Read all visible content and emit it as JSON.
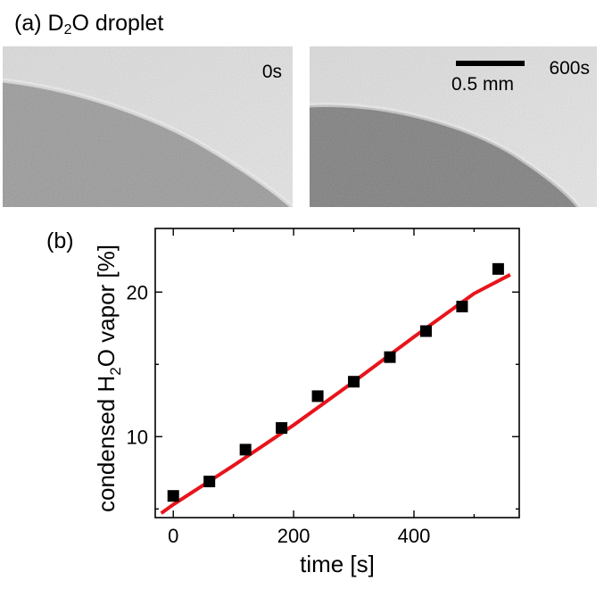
{
  "figure": {
    "panel_a": {
      "label_prefix": "(a) D",
      "label_sub": "2",
      "label_suffix": "O droplet",
      "images": [
        {
          "time_label": "0s"
        },
        {
          "time_label": "600s",
          "scale_bar_label": "0.5 mm"
        }
      ]
    },
    "panel_b": {
      "label": "(b)"
    }
  },
  "chart_data": {
    "type": "scatter",
    "xlabel": "time [s]",
    "ylabel": "condensed H2O vapor [%]",
    "ylabel_parts": [
      "condensed H",
      "2",
      "O vapor [%]"
    ],
    "xlim": [
      -30,
      575
    ],
    "ylim": [
      4.4,
      24.4
    ],
    "x_ticks": [
      0,
      200,
      400
    ],
    "y_ticks": [
      10,
      20
    ],
    "grid": false,
    "series": [
      {
        "kind": "points",
        "marker": "square",
        "color": "#000000",
        "x": [
          0,
          60,
          120,
          180,
          240,
          300,
          360,
          420,
          480,
          540
        ],
        "y": [
          5.9,
          6.9,
          9.1,
          10.6,
          12.8,
          13.8,
          15.5,
          17.3,
          19.0,
          21.6
        ]
      },
      {
        "kind": "fit-line",
        "color": "#e8141b",
        "x": [
          -20,
          0,
          100,
          200,
          300,
          400,
          500,
          560
        ],
        "y": [
          4.7,
          5.3,
          8.0,
          10.8,
          13.8,
          16.9,
          19.9,
          21.2
        ]
      }
    ]
  }
}
